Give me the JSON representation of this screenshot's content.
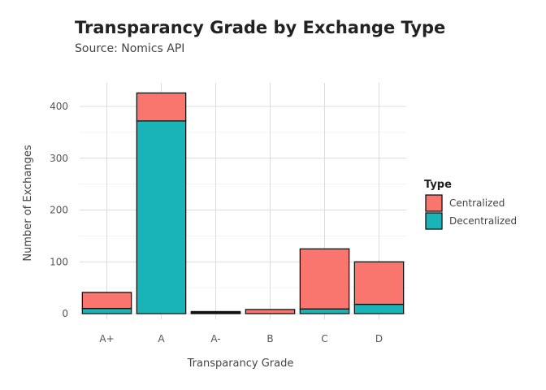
{
  "chart_data": {
    "type": "bar",
    "stacked": true,
    "title": "Transparancy Grade by Exchange Type",
    "subtitle": "Source: Nomics API",
    "xlabel": "Transparancy Grade",
    "ylabel": "Number of Exchanges",
    "categories": [
      "A+",
      "A",
      "A-",
      "B",
      "C",
      "D"
    ],
    "ylim": [
      0,
      445
    ],
    "yticks": [
      0,
      100,
      200,
      300,
      400
    ],
    "grid": true,
    "legend": {
      "title": "Type",
      "position": "right"
    },
    "series": [
      {
        "name": "Centralized",
        "color": "#F8766D",
        "values": [
          31,
          54,
          2,
          8,
          116,
          82
        ]
      },
      {
        "name": "Decentralized",
        "color": "#19B4B8",
        "values": [
          10,
          372,
          2,
          0,
          9,
          18
        ]
      }
    ]
  }
}
